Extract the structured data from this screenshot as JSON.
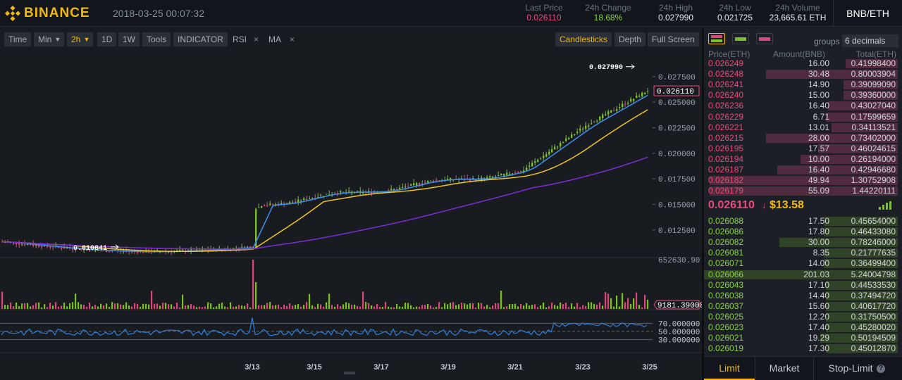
{
  "header": {
    "brand": "BINANCE",
    "datetime": "2018-03-25 00:07:32",
    "stats": [
      {
        "label": "Last Price",
        "value": "0.026110",
        "color": "#e74c7c"
      },
      {
        "label": "24h Change",
        "value": "18.68%",
        "color": "#8bd148"
      },
      {
        "label": "24h High",
        "value": "0.027990",
        "color": "#e6e8ea"
      },
      {
        "label": "24h Low",
        "value": "0.021725",
        "color": "#e6e8ea"
      },
      {
        "label": "24h Volume",
        "value": "23,665.61 ETH",
        "color": "#e6e8ea"
      }
    ],
    "pair": "BNB/ETH"
  },
  "toolbar": {
    "time": "Time",
    "min": "Min",
    "interval": "2h",
    "d1": "1D",
    "w1": "1W",
    "tools": "Tools",
    "indicator": "INDICATOR",
    "rsi": "RSI",
    "ma": "MA",
    "remove": "×",
    "candlesticks": "Candlesticks",
    "depth": "Depth",
    "fullscreen": "Full Screen"
  },
  "chart_data": {
    "type": "candlestick",
    "price_ticks": [
      "0.027500",
      "0.025000",
      "0.022500",
      "0.020000",
      "0.017500",
      "0.015000",
      "0.012500"
    ],
    "price_range": [
      0.0098,
      0.0288
    ],
    "last_price_label": "0.026110",
    "high_marker": "0.027990",
    "low_marker": "0.010841",
    "volume_max_label": "652630.90",
    "volume_current_label": "9181.39000",
    "rsi_ticks": [
      "70.000000",
      "50.000000",
      "30.000000"
    ],
    "x_ticks": [
      "3/13",
      "3/15",
      "3/17",
      "3/19",
      "3/21",
      "3/23",
      "3/25"
    ],
    "colors": {
      "up": "#7bbf2a",
      "down": "#d8497a",
      "ma_fast": "#3f8ef0",
      "ma_mid": "#f0c419",
      "ma_slow": "#7b2cd8",
      "rsi": "#2f7fe0"
    }
  },
  "orderbook": {
    "groups_label": "groups",
    "decimals": "6 decimals",
    "headers": {
      "price": "Price(ETH)",
      "amount": "Amount(BNB)",
      "total": "Total(ETH)"
    },
    "asks": [
      {
        "price": "0.026249",
        "amount": "16.00",
        "total": "0.41998400",
        "depth": 0.27
      },
      {
        "price": "0.026248",
        "amount": "30.48",
        "total": "0.80003904",
        "depth": 0.68
      },
      {
        "price": "0.026241",
        "amount": "14.90",
        "total": "0.39099090",
        "depth": 0.28
      },
      {
        "price": "0.026240",
        "amount": "15.00",
        "total": "0.39360000",
        "depth": 0.28
      },
      {
        "price": "0.026236",
        "amount": "16.40",
        "total": "0.43027040",
        "depth": 0.36
      },
      {
        "price": "0.026229",
        "amount": "6.71",
        "total": "0.17599659",
        "depth": 0.37
      },
      {
        "price": "0.026221",
        "amount": "13.01",
        "total": "0.34113521",
        "depth": 0.34
      },
      {
        "price": "0.026215",
        "amount": "28.00",
        "total": "0.73402000",
        "depth": 0.68
      },
      {
        "price": "0.026195",
        "amount": "17.57",
        "total": "0.46024615",
        "depth": 0.41
      },
      {
        "price": "0.026194",
        "amount": "10.00",
        "total": "0.26194000",
        "depth": 0.5
      },
      {
        "price": "0.026187",
        "amount": "16.40",
        "total": "0.42946680",
        "depth": 0.62
      },
      {
        "price": "0.026182",
        "amount": "49.94",
        "total": "1.30752908",
        "depth": 0.97
      },
      {
        "price": "0.026179",
        "amount": "55.09",
        "total": "1.44220111",
        "depth": 0.97
      }
    ],
    "last_price": "0.026110",
    "last_arrow": "↓",
    "last_usd": "$13.58",
    "bids": [
      {
        "price": "0.026088",
        "amount": "17.50",
        "total": "0.45654000",
        "depth": 0.38
      },
      {
        "price": "0.026086",
        "amount": "17.80",
        "total": "0.46433080",
        "depth": 0.38
      },
      {
        "price": "0.026082",
        "amount": "30.00",
        "total": "0.78246000",
        "depth": 0.61
      },
      {
        "price": "0.026081",
        "amount": "8.35",
        "total": "0.21777635",
        "depth": 0.38
      },
      {
        "price": "0.026071",
        "amount": "14.00",
        "total": "0.36499400",
        "depth": 0.38
      },
      {
        "price": "0.026066",
        "amount": "201.03",
        "total": "5.24004798",
        "depth": 1.0
      },
      {
        "price": "0.026043",
        "amount": "17.10",
        "total": "0.44533530",
        "depth": 0.37
      },
      {
        "price": "0.026038",
        "amount": "14.40",
        "total": "0.37494720",
        "depth": 0.37
      },
      {
        "price": "0.026037",
        "amount": "15.60",
        "total": "0.40617720",
        "depth": 0.37
      },
      {
        "price": "0.026025",
        "amount": "12.20",
        "total": "0.31750500",
        "depth": 0.37
      },
      {
        "price": "0.026023",
        "amount": "17.40",
        "total": "0.45280020",
        "depth": 0.37
      },
      {
        "price": "0.026021",
        "amount": "19.29",
        "total": "0.50194509",
        "depth": 0.4
      },
      {
        "price": "0.026019",
        "amount": "17.30",
        "total": "0.45012870",
        "depth": 0.37
      }
    ]
  },
  "tabs": {
    "limit": "Limit",
    "market": "Market",
    "stop_limit": "Stop-Limit"
  }
}
